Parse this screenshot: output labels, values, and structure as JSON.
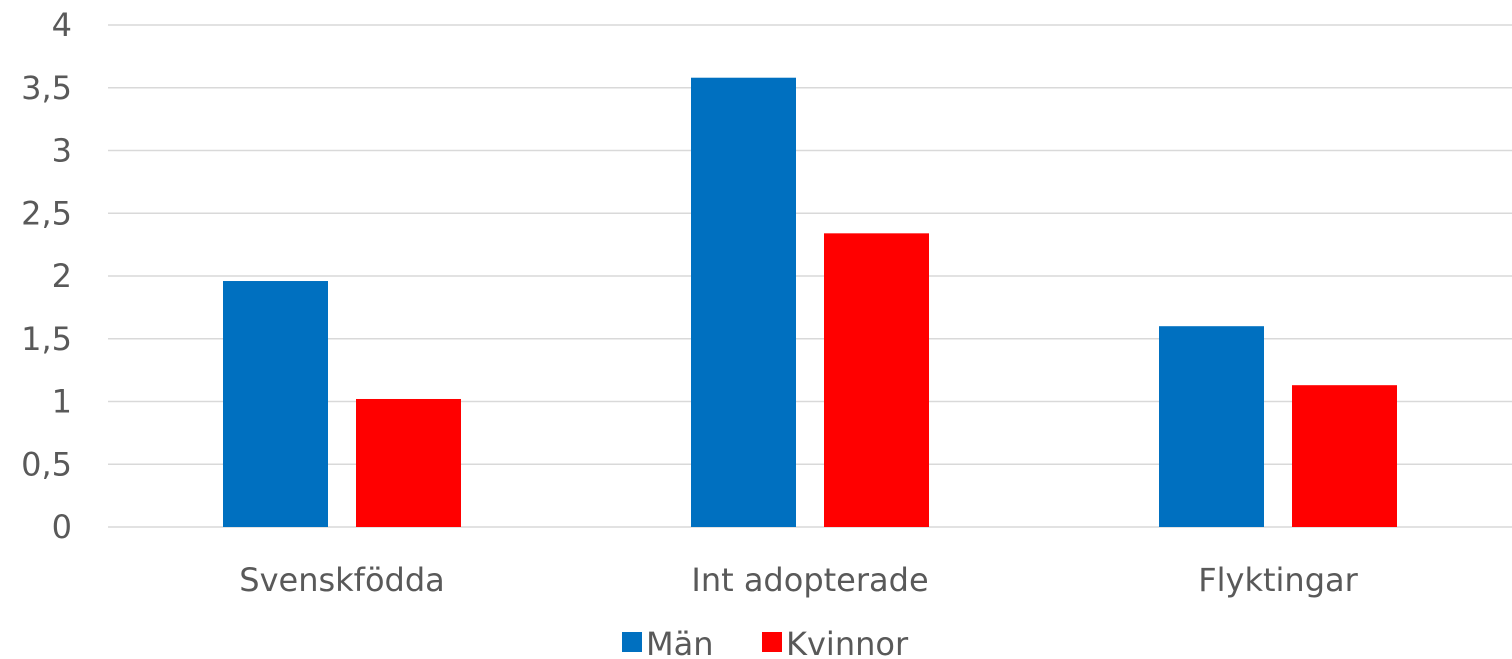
{
  "chart_data": {
    "type": "bar",
    "title": "",
    "xlabel": "",
    "ylabel": "",
    "categories": [
      "Svenskfödda",
      "Int adopterade",
      "Flyktingar"
    ],
    "series": [
      {
        "name": "Män",
        "color": "#0070C0",
        "values": [
          1.96,
          3.58,
          1.6
        ]
      },
      {
        "name": "Kvinnor",
        "color": "#FF0000",
        "values": [
          1.02,
          2.34,
          1.13
        ]
      }
    ],
    "ylim": [
      0,
      4
    ],
    "yticks": [
      "0",
      "0,5",
      "1",
      "1,5",
      "2",
      "2,5",
      "3",
      "3,5",
      "4"
    ],
    "ytick_values": [
      0,
      0.5,
      1,
      1.5,
      2,
      2.5,
      3,
      3.5,
      4
    ],
    "grid": true,
    "legend_position": "bottom"
  }
}
